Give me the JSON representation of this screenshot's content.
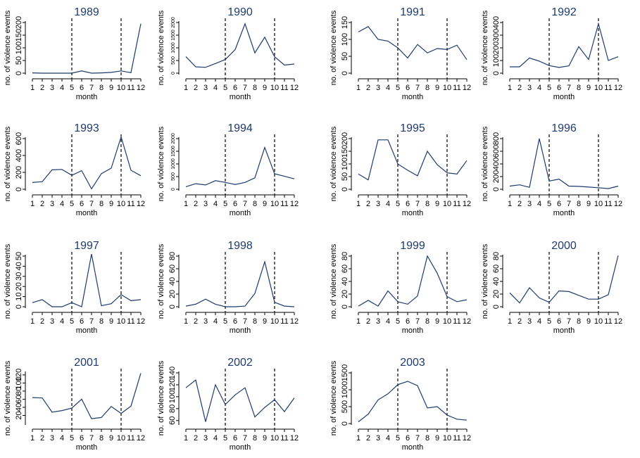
{
  "chart_data": [
    {
      "type": "line",
      "title": "1989",
      "xlabel": "month",
      "ylabel": "no. of violence events",
      "categories": [
        "1",
        "2",
        "3",
        "4",
        "5",
        "6",
        "7",
        "8",
        "9",
        "10",
        "11",
        "12"
      ],
      "yticks": [
        "0",
        "50",
        "100",
        "150",
        "200"
      ],
      "ylim": [
        0,
        200
      ],
      "values": [
        1,
        0,
        0,
        0,
        0,
        9,
        0,
        1,
        3,
        9,
        2,
        195
      ],
      "vlines": [
        5,
        10
      ]
    },
    {
      "type": "line",
      "title": "1990",
      "xlabel": "month",
      "ylabel": "no. of violence events",
      "categories": [
        "1",
        "2",
        "3",
        "4",
        "5",
        "6",
        "7",
        "8",
        "9",
        "10",
        "11",
        "12"
      ],
      "yticks": [
        "0",
        "500",
        "1000",
        "1500",
        "2000"
      ],
      "ylim": [
        0,
        2000
      ],
      "values": [
        650,
        250,
        230,
        380,
        540,
        930,
        1950,
        800,
        1420,
        650,
        320,
        360
      ],
      "vlines": [
        5,
        10
      ]
    },
    {
      "type": "line",
      "title": "1991",
      "xlabel": "month",
      "ylabel": "no. of violence events",
      "categories": [
        "1",
        "2",
        "3",
        "4",
        "5",
        "6",
        "7",
        "8",
        "9",
        "10",
        "11",
        "12"
      ],
      "yticks": [
        "0",
        "50",
        "100",
        "150"
      ],
      "ylim": [
        0,
        150
      ],
      "values": [
        122,
        138,
        100,
        95,
        75,
        45,
        85,
        60,
        73,
        70,
        83,
        40
      ],
      "vlines": [
        5,
        10
      ]
    },
    {
      "type": "line",
      "title": "1992",
      "xlabel": "month",
      "ylabel": "no. of violence events",
      "categories": [
        "1",
        "2",
        "3",
        "4",
        "5",
        "6",
        "7",
        "8",
        "9",
        "10",
        "11",
        "12"
      ],
      "yticks": [
        "0",
        "100",
        "200",
        "300",
        "400"
      ],
      "ylim": [
        0,
        400
      ],
      "values": [
        50,
        50,
        120,
        95,
        60,
        45,
        58,
        210,
        108,
        390,
        100,
        130
      ],
      "vlines": [
        5,
        10
      ]
    },
    {
      "type": "line",
      "title": "1993",
      "xlabel": "month",
      "ylabel": "no. of violence events",
      "categories": [
        "1",
        "2",
        "3",
        "4",
        "5",
        "6",
        "7",
        "8",
        "9",
        "10",
        "11",
        "12"
      ],
      "yticks": [
        "0",
        "200",
        "400",
        "600"
      ],
      "ylim": [
        0,
        600
      ],
      "values": [
        80,
        90,
        230,
        235,
        165,
        220,
        5,
        185,
        250,
        620,
        225,
        160
      ],
      "vlines": [
        5,
        10
      ]
    },
    {
      "type": "line",
      "title": "1994",
      "xlabel": "month",
      "ylabel": "no. of violence events",
      "categories": [
        "1",
        "2",
        "3",
        "4",
        "5",
        "6",
        "7",
        "8",
        "9",
        "10",
        "11",
        "12"
      ],
      "yticks": [
        "0",
        "500",
        "1000",
        "1500",
        "2000"
      ],
      "ylim": [
        0,
        2000
      ],
      "values": [
        100,
        220,
        170,
        340,
        270,
        190,
        270,
        450,
        1650,
        610,
        510,
        410
      ],
      "vlines": [
        5,
        10
      ]
    },
    {
      "type": "line",
      "title": "1995",
      "xlabel": "month",
      "ylabel": "no. of violence events",
      "categories": [
        "1",
        "2",
        "3",
        "4",
        "5",
        "6",
        "7",
        "8",
        "9",
        "10",
        "11",
        "12"
      ],
      "yticks": [
        "0",
        "50",
        "100",
        "150",
        "200"
      ],
      "ylim": [
        0,
        200
      ],
      "values": [
        60,
        37,
        195,
        195,
        100,
        75,
        53,
        150,
        97,
        65,
        60,
        113
      ],
      "vlines": [
        5,
        10
      ]
    },
    {
      "type": "line",
      "title": "1996",
      "xlabel": "month",
      "ylabel": "no. of violence events",
      "categories": [
        "1",
        "2",
        "3",
        "4",
        "5",
        "6",
        "7",
        "8",
        "9",
        "10",
        "11",
        "12"
      ],
      "yticks": [
        "0",
        "200",
        "400",
        "600",
        "800"
      ],
      "ylim": [
        0,
        800
      ],
      "values": [
        50,
        70,
        30,
        800,
        130,
        160,
        50,
        45,
        35,
        25,
        10,
        50
      ],
      "vlines": [
        5,
        10
      ]
    },
    {
      "type": "line",
      "title": "1997",
      "xlabel": "month",
      "ylabel": "no. of violence events",
      "categories": [
        "1",
        "2",
        "3",
        "4",
        "5",
        "6",
        "7",
        "8",
        "9",
        "10",
        "11",
        "12"
      ],
      "yticks": [
        "0",
        "10",
        "20",
        "30",
        "40",
        "50"
      ],
      "ylim": [
        0,
        50
      ],
      "values": [
        4,
        7,
        0,
        0,
        4,
        0,
        52,
        1,
        3,
        12,
        6,
        7
      ],
      "vlines": [
        5,
        10
      ]
    },
    {
      "type": "line",
      "title": "1998",
      "xlabel": "month",
      "ylabel": "no. of violence events",
      "categories": [
        "1",
        "2",
        "3",
        "4",
        "5",
        "6",
        "7",
        "8",
        "9",
        "10",
        "11",
        "12"
      ],
      "yticks": [
        "0",
        "20",
        "40",
        "60",
        "80"
      ],
      "ylim": [
        0,
        80
      ],
      "values": [
        1,
        4,
        12,
        4,
        0,
        0,
        1,
        21,
        71,
        7,
        1,
        0
      ],
      "vlines": [
        5,
        10
      ]
    },
    {
      "type": "line",
      "title": "1999",
      "xlabel": "month",
      "ylabel": "no. of violence events",
      "categories": [
        "1",
        "2",
        "3",
        "4",
        "5",
        "6",
        "7",
        "8",
        "9",
        "10",
        "11",
        "12"
      ],
      "yticks": [
        "0",
        "20",
        "40",
        "60",
        "80"
      ],
      "ylim": [
        0,
        80
      ],
      "values": [
        1,
        10,
        1,
        25,
        8,
        4,
        17,
        80,
        53,
        16,
        8,
        11
      ],
      "vlines": [
        5,
        10
      ]
    },
    {
      "type": "line",
      "title": "2000",
      "xlabel": "month",
      "ylabel": "no. of violence events",
      "categories": [
        "1",
        "2",
        "3",
        "4",
        "5",
        "6",
        "7",
        "8",
        "9",
        "10",
        "11",
        "12"
      ],
      "yticks": [
        "0",
        "20",
        "40",
        "60",
        "80"
      ],
      "ylim": [
        0,
        80
      ],
      "values": [
        22,
        6,
        30,
        14,
        7,
        25,
        24,
        18,
        12,
        12,
        19,
        81
      ],
      "vlines": [
        5,
        10
      ]
    },
    {
      "type": "line",
      "title": "2001",
      "xlabel": "month",
      "ylabel": "no. of violence events",
      "categories": [
        "1",
        "2",
        "3",
        "4",
        "5",
        "6",
        "7",
        "8",
        "9",
        "10",
        "11",
        "12"
      ],
      "yticks": [
        "20",
        "40",
        "60",
        "80",
        "100",
        "120"
      ],
      "ylim": [
        0,
        125
      ],
      "values": [
        64,
        63,
        28,
        32,
        38,
        60,
        12,
        15,
        42,
        25,
        43,
        124
      ],
      "vlines": [
        5,
        10
      ]
    },
    {
      "type": "line",
      "title": "2002",
      "xlabel": "month",
      "ylabel": "no. of violence events",
      "categories": [
        "1",
        "2",
        "3",
        "4",
        "5",
        "6",
        "7",
        "8",
        "9",
        "10",
        "11",
        "12"
      ],
      "yticks": [
        "60",
        "80",
        "100",
        "120",
        "140"
      ],
      "ylim": [
        55,
        140
      ],
      "values": [
        115,
        128,
        58,
        120,
        87,
        103,
        115,
        66,
        82,
        95,
        75,
        98
      ],
      "vlines": [
        5,
        10
      ]
    },
    {
      "type": "line",
      "title": "2003",
      "xlabel": "month",
      "ylabel": "no. of violence events",
      "categories": [
        "1",
        "2",
        "3",
        "4",
        "5",
        "6",
        "7",
        "8",
        "9",
        "10",
        "11",
        "12"
      ],
      "yticks": [
        "0",
        "500",
        "1000",
        "1500"
      ],
      "ylim": [
        0,
        1500
      ],
      "values": [
        50,
        280,
        700,
        880,
        1150,
        1250,
        1120,
        460,
        500,
        250,
        130,
        100
      ],
      "vlines": [
        5,
        10
      ]
    }
  ],
  "colors": {
    "line": "#1f3a6e",
    "title": "#1f3a6e",
    "axis": "#000000"
  }
}
